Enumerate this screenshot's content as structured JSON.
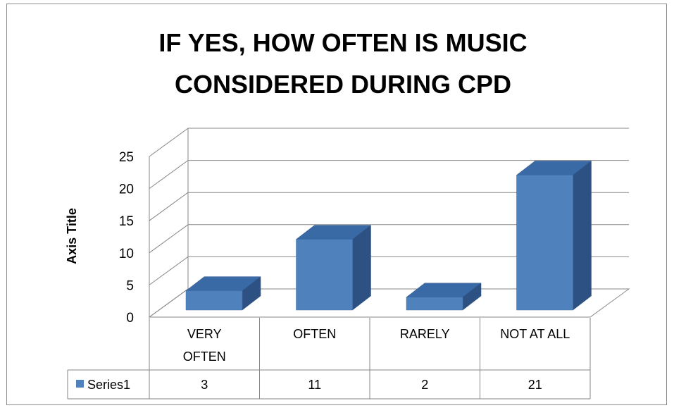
{
  "chart_data": {
    "type": "bar",
    "title_lines": [
      "IF YES, HOW OFTEN IS MUSIC",
      "CONSIDERED DURING CPD"
    ],
    "ylabel": "Axis Title",
    "ylim": [
      0,
      25
    ],
    "yticks": [
      0,
      5,
      10,
      15,
      20,
      25
    ],
    "categories": [
      [
        "VERY",
        "OFTEN"
      ],
      [
        "OFTEN"
      ],
      [
        "RARELY"
      ],
      [
        "NOT AT ALL"
      ]
    ],
    "series": [
      {
        "name": "Series1",
        "values": [
          3,
          11,
          2,
          21
        ],
        "color": "#4f81bd"
      }
    ],
    "grid": true,
    "legend": "data-table",
    "three_d": true
  }
}
